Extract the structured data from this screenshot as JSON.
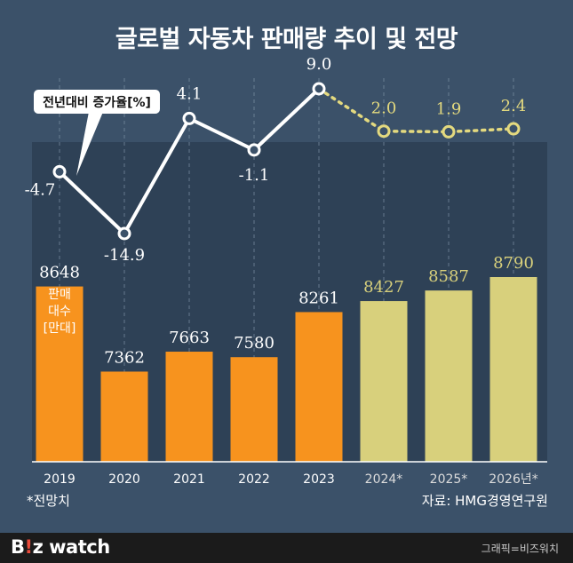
{
  "title": "글로벌 자동차 판매량 추이 및 전망",
  "footer": {
    "forecast_note": "*전망치",
    "source": "자료: HMG경영연구원"
  },
  "brand": {
    "logo_b": "B",
    "logo_i": "!",
    "logo_z": "z",
    "logo_rest": "watch",
    "credit": "그래픽=비즈워치"
  },
  "colors": {
    "background": "#3b5169",
    "bar_actual": "#f7931e",
    "bar_forecast": "#d8d07c",
    "line_actual": "#ffffff",
    "line_forecast": "#e3d97f"
  },
  "chart_data": {
    "type": "bar",
    "categories": [
      "2019",
      "2020",
      "2021",
      "2022",
      "2023",
      "2024*",
      "2025*",
      "2026년*"
    ],
    "bar_series": {
      "name": "판매대수[만대]",
      "values": [
        8648,
        7362,
        7663,
        7580,
        8261,
        8427,
        8587,
        8790
      ],
      "labels": [
        "8648",
        "7362",
        "7663",
        "7580",
        "8261",
        "8427",
        "8587",
        "8790"
      ],
      "axis_label": [
        "판매",
        "대수",
        "[만대]"
      ]
    },
    "line_series": {
      "name": "전년대비 증가율[%]",
      "values": [
        -4.7,
        -14.9,
        4.1,
        -1.1,
        9.0,
        2.0,
        1.9,
        2.4
      ],
      "labels": [
        "-4.7",
        "-14.9",
        "4.1",
        "-1.1",
        "9.0",
        "2.0",
        "1.9",
        "2.4"
      ],
      "forecast_from_index": 5
    },
    "actual_count": 5
  }
}
